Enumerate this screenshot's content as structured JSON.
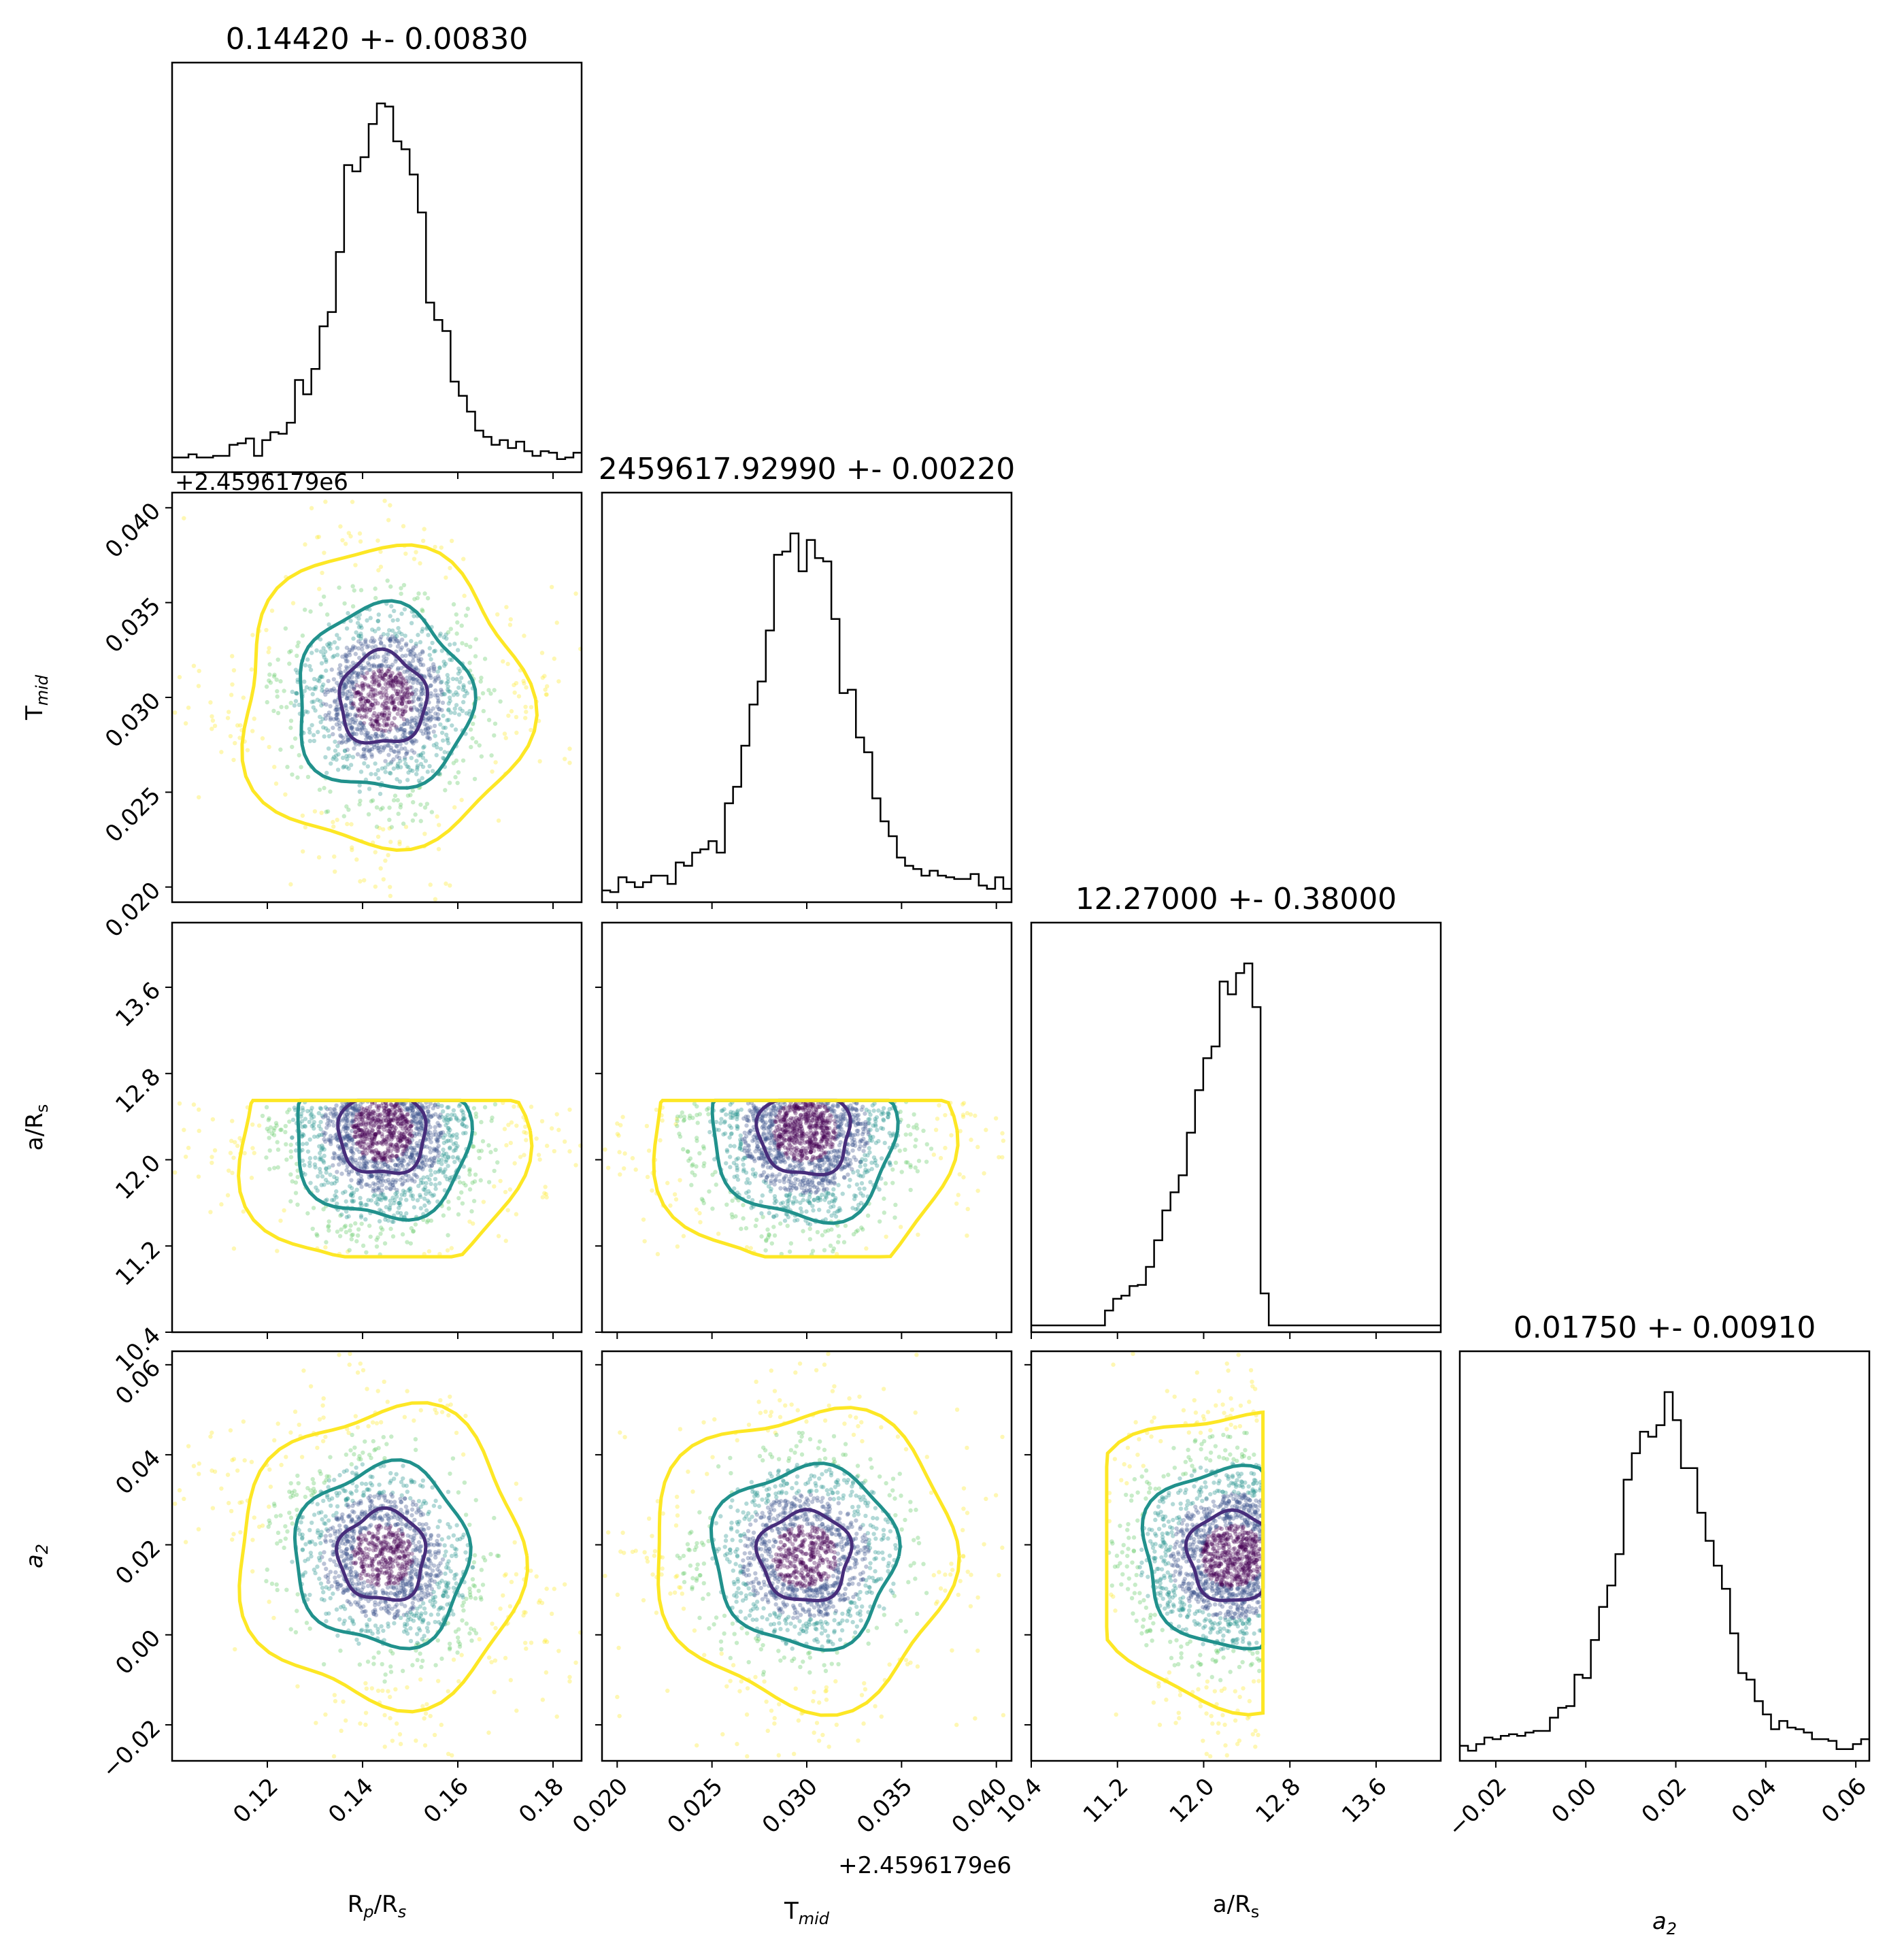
{
  "chart_data": {
    "type": "corner",
    "parameters": [
      {
        "key": "rp",
        "label": "R",
        "label_sub": "p",
        "label_tail": "/R",
        "label_sub2": "s",
        "median": 0.1442,
        "sigma": 0.0083,
        "range": [
          0.1,
          0.186
        ]
      },
      {
        "key": "tmid",
        "label": "T",
        "label_sub": "mid",
        "label_tail": "",
        "label_sub2": "",
        "offset_text": "+2.4596179e6",
        "median": 0.0299,
        "sigma": 0.0022,
        "range": [
          0.0192,
          0.0408
        ]
      },
      {
        "key": "ars",
        "label": "a/R",
        "label_sub": "s",
        "label_tail": "",
        "label_sub2": "",
        "median": 12.27,
        "sigma": 0.38,
        "range": [
          10.4,
          14.2
        ],
        "support": [
          11.1,
          12.55
        ]
      },
      {
        "key": "a2",
        "label": "a",
        "label_sub": "2",
        "label_tail": "",
        "label_sub2": "",
        "median": 0.0175,
        "sigma": 0.0091,
        "range": [
          -0.028,
          0.063
        ]
      }
    ],
    "titles": [
      "0.14420 +- 0.00830",
      "2459617.92990 +- 0.00220",
      "12.27000 +- 0.38000",
      "0.01750 +- 0.00910"
    ],
    "ticks": {
      "rp": [
        "0.12",
        "0.14",
        "0.16",
        "0.18"
      ],
      "tmid": [
        "0.020",
        "0.025",
        "0.030",
        "0.035",
        "0.040"
      ],
      "ars": [
        "10.4",
        "11.2",
        "12.0",
        "12.8",
        "13.6"
      ],
      "a2": [
        "−0.02",
        "0.00",
        "0.02",
        "0.04",
        "0.06"
      ]
    },
    "tick_values": {
      "rp": [
        0.12,
        0.14,
        0.16,
        0.18
      ],
      "tmid": [
        0.02,
        0.025,
        0.03,
        0.035,
        0.04
      ],
      "ars": [
        10.4,
        11.2,
        12.0,
        12.8,
        13.6
      ],
      "a2": [
        -0.02,
        0.0,
        0.02,
        0.04,
        0.06
      ]
    },
    "contour_levels": [
      "1-sigma",
      "2-sigma",
      "3-sigma"
    ],
    "colors": {
      "line": "#000000",
      "level1": "#472d7b",
      "level2": "#21918c",
      "level3": "#fde725",
      "points": [
        "#440154",
        "#3b528b",
        "#21918c",
        "#5ec962",
        "#fde725"
      ]
    },
    "grid": false,
    "legend": "none"
  }
}
